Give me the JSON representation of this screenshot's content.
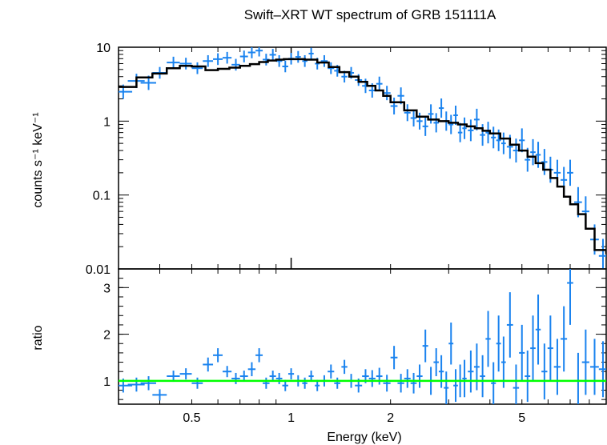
{
  "chart_data": [
    {
      "type": "scatter",
      "panel": "spectrum",
      "title": "Swift–XRT WT spectrum of GRB 151111A",
      "xlabel": "Energy (keV)",
      "ylabel": "counts s⁻¹ keV⁻¹",
      "xscale": "log",
      "yscale": "log",
      "xlim": [
        0.3,
        9.0
      ],
      "ylim": [
        0.01,
        10
      ],
      "yticks": [
        0.01,
        0.1,
        1,
        10
      ],
      "ytick_labels": [
        "0.01",
        "0.1",
        "1",
        "10"
      ],
      "series": [
        {
          "kind": "data",
          "color": "#1a83ef",
          "x": [
            0.31,
            0.34,
            0.37,
            0.4,
            0.44,
            0.48,
            0.52,
            0.56,
            0.6,
            0.64,
            0.68,
            0.72,
            0.76,
            0.8,
            0.84,
            0.88,
            0.92,
            0.96,
            1.0,
            1.05,
            1.1,
            1.15,
            1.2,
            1.26,
            1.32,
            1.38,
            1.45,
            1.52,
            1.6,
            1.68,
            1.76,
            1.85,
            1.95,
            2.05,
            2.15,
            2.25,
            2.35,
            2.45,
            2.55,
            2.65,
            2.75,
            2.85,
            2.95,
            3.05,
            3.15,
            3.25,
            3.35,
            3.5,
            3.65,
            3.8,
            3.95,
            4.1,
            4.25,
            4.4,
            4.6,
            4.8,
            5.0,
            5.2,
            5.4,
            5.6,
            5.85,
            6.1,
            6.4,
            6.7,
            7.0,
            7.4,
            7.8,
            8.3,
            8.8
          ],
          "y": [
            2.5,
            3.5,
            3.3,
            4.5,
            6.2,
            6.0,
            5.2,
            6.5,
            6.9,
            7.2,
            5.8,
            7.5,
            8.5,
            9.0,
            6.8,
            7.9,
            6.5,
            5.5,
            7.0,
            7.4,
            6.5,
            8.2,
            6.0,
            6.5,
            5.2,
            4.8,
            4.0,
            4.5,
            3.6,
            3.0,
            2.6,
            3.2,
            2.4,
            1.6,
            2.2,
            1.3,
            1.1,
            1.0,
            0.85,
            1.25,
            0.95,
            1.5,
            1.0,
            0.9,
            1.2,
            0.7,
            0.8,
            0.75,
            1.05,
            0.65,
            0.7,
            0.6,
            0.55,
            0.5,
            0.45,
            0.4,
            0.55,
            0.3,
            0.38,
            0.35,
            0.28,
            0.22,
            0.2,
            0.16,
            0.2,
            0.08,
            0.06,
            0.025,
            0.015
          ],
          "xerr": [
            0.02,
            0.02,
            0.02,
            0.02,
            0.02,
            0.02,
            0.02,
            0.02,
            0.02,
            0.02,
            0.02,
            0.02,
            0.02,
            0.02,
            0.02,
            0.02,
            0.02,
            0.02,
            0.02,
            0.02,
            0.02,
            0.02,
            0.02,
            0.03,
            0.03,
            0.03,
            0.03,
            0.03,
            0.04,
            0.04,
            0.04,
            0.04,
            0.05,
            0.05,
            0.05,
            0.05,
            0.05,
            0.05,
            0.05,
            0.05,
            0.05,
            0.05,
            0.05,
            0.05,
            0.05,
            0.05,
            0.05,
            0.07,
            0.07,
            0.07,
            0.07,
            0.07,
            0.07,
            0.07,
            0.1,
            0.1,
            0.1,
            0.1,
            0.1,
            0.1,
            0.12,
            0.12,
            0.15,
            0.15,
            0.15,
            0.2,
            0.2,
            0.25,
            0.25
          ],
          "yerr_frac": [
            0.25,
            0.25,
            0.25,
            0.2,
            0.2,
            0.2,
            0.2,
            0.2,
            0.2,
            0.2,
            0.2,
            0.2,
            0.2,
            0.2,
            0.2,
            0.2,
            0.2,
            0.2,
            0.2,
            0.2,
            0.2,
            0.2,
            0.2,
            0.2,
            0.2,
            0.2,
            0.2,
            0.2,
            0.2,
            0.25,
            0.25,
            0.25,
            0.25,
            0.3,
            0.3,
            0.3,
            0.3,
            0.3,
            0.35,
            0.35,
            0.35,
            0.35,
            0.35,
            0.35,
            0.35,
            0.35,
            0.4,
            0.4,
            0.4,
            0.4,
            0.4,
            0.4,
            0.4,
            0.4,
            0.45,
            0.45,
            0.45,
            0.45,
            0.5,
            0.5,
            0.5,
            0.5,
            0.5,
            0.5,
            0.5,
            0.6,
            0.6,
            0.6,
            0.7
          ]
        },
        {
          "kind": "model",
          "color": "#000000",
          "x": [
            0.3,
            0.34,
            0.38,
            0.42,
            0.46,
            0.5,
            0.55,
            0.6,
            0.65,
            0.7,
            0.75,
            0.8,
            0.85,
            0.9,
            0.95,
            1.0,
            1.1,
            1.2,
            1.3,
            1.4,
            1.5,
            1.6,
            1.7,
            1.8,
            1.9,
            2.0,
            2.2,
            2.4,
            2.6,
            2.8,
            3.0,
            3.2,
            3.4,
            3.6,
            3.8,
            4.0,
            4.3,
            4.6,
            4.9,
            5.2,
            5.5,
            5.8,
            6.1,
            6.4,
            6.7,
            7.0,
            7.4,
            7.8,
            8.3,
            9.0
          ],
          "y": [
            2.9,
            3.9,
            4.4,
            5.2,
            5.6,
            5.5,
            4.9,
            5.1,
            5.3,
            5.6,
            5.9,
            6.3,
            6.6,
            6.8,
            6.9,
            6.9,
            6.8,
            6.2,
            5.4,
            4.6,
            4.0,
            3.4,
            3.0,
            2.6,
            2.2,
            1.8,
            1.4,
            1.15,
            1.05,
            1.0,
            0.95,
            0.9,
            0.85,
            0.8,
            0.74,
            0.68,
            0.58,
            0.48,
            0.4,
            0.33,
            0.27,
            0.22,
            0.17,
            0.13,
            0.095,
            0.075,
            0.055,
            0.035,
            0.018,
            0.016
          ]
        }
      ]
    },
    {
      "type": "scatter",
      "panel": "ratio",
      "xlabel": "Energy (keV)",
      "ylabel": "ratio",
      "xscale": "log",
      "xlim": [
        0.3,
        9.0
      ],
      "ylim": [
        0.5,
        3.4
      ],
      "xticks": [
        0.5,
        1,
        2,
        5
      ],
      "xtick_labels": [
        "0.5",
        "1",
        "2",
        "5"
      ],
      "yticks": [
        1,
        2,
        3
      ],
      "ytick_labels": [
        "1",
        "2",
        "3"
      ],
      "reference_line": {
        "y": 1,
        "color": "#00ff00"
      },
      "series": [
        {
          "kind": "data",
          "color": "#1a83ef",
          "x": [
            0.31,
            0.34,
            0.37,
            0.4,
            0.44,
            0.48,
            0.52,
            0.56,
            0.6,
            0.64,
            0.68,
            0.72,
            0.76,
            0.8,
            0.84,
            0.88,
            0.92,
            0.96,
            1.0,
            1.05,
            1.1,
            1.15,
            1.2,
            1.26,
            1.32,
            1.38,
            1.45,
            1.52,
            1.6,
            1.68,
            1.76,
            1.85,
            1.95,
            2.05,
            2.15,
            2.25,
            2.35,
            2.45,
            2.55,
            2.65,
            2.75,
            2.85,
            2.95,
            3.05,
            3.15,
            3.25,
            3.35,
            3.5,
            3.65,
            3.8,
            3.95,
            4.1,
            4.25,
            4.4,
            4.6,
            4.8,
            5.0,
            5.2,
            5.4,
            5.6,
            5.85,
            6.1,
            6.4,
            6.7,
            7.0,
            7.4,
            7.8,
            8.3,
            8.8
          ],
          "y": [
            0.9,
            0.92,
            0.95,
            0.7,
            1.1,
            1.15,
            0.95,
            1.35,
            1.55,
            1.2,
            1.05,
            1.1,
            1.25,
            1.55,
            0.95,
            1.1,
            1.05,
            0.9,
            1.15,
            1.0,
            0.95,
            1.1,
            0.9,
            1.0,
            1.2,
            0.95,
            1.3,
            1.0,
            0.9,
            1.1,
            1.05,
            1.1,
            0.95,
            1.5,
            0.95,
            1.05,
            0.95,
            1.1,
            1.75,
            1.0,
            1.4,
            1.2,
            0.85,
            1.8,
            0.9,
            1.0,
            1.05,
            1.2,
            1.3,
            1.1,
            1.9,
            0.95,
            1.8,
            1.4,
            2.2,
            0.85,
            1.6,
            1.1,
            1.7,
            2.1,
            1.2,
            1.7,
            1.3,
            1.9,
            3.1,
            1.0,
            1.4,
            1.3,
            1.25
          ],
          "yerr": [
            0.15,
            0.15,
            0.15,
            0.12,
            0.12,
            0.12,
            0.12,
            0.15,
            0.15,
            0.12,
            0.12,
            0.12,
            0.15,
            0.15,
            0.12,
            0.12,
            0.12,
            0.12,
            0.12,
            0.12,
            0.12,
            0.12,
            0.12,
            0.12,
            0.15,
            0.12,
            0.15,
            0.15,
            0.15,
            0.15,
            0.18,
            0.18,
            0.18,
            0.25,
            0.2,
            0.2,
            0.22,
            0.25,
            0.35,
            0.3,
            0.3,
            0.35,
            0.35,
            0.45,
            0.35,
            0.35,
            0.4,
            0.45,
            0.5,
            0.45,
            0.6,
            0.45,
            0.6,
            0.55,
            0.7,
            0.5,
            0.6,
            0.55,
            0.7,
            0.75,
            0.6,
            0.7,
            0.6,
            0.7,
            0.9,
            0.6,
            0.7,
            0.6,
            0.6
          ]
        }
      ]
    }
  ]
}
